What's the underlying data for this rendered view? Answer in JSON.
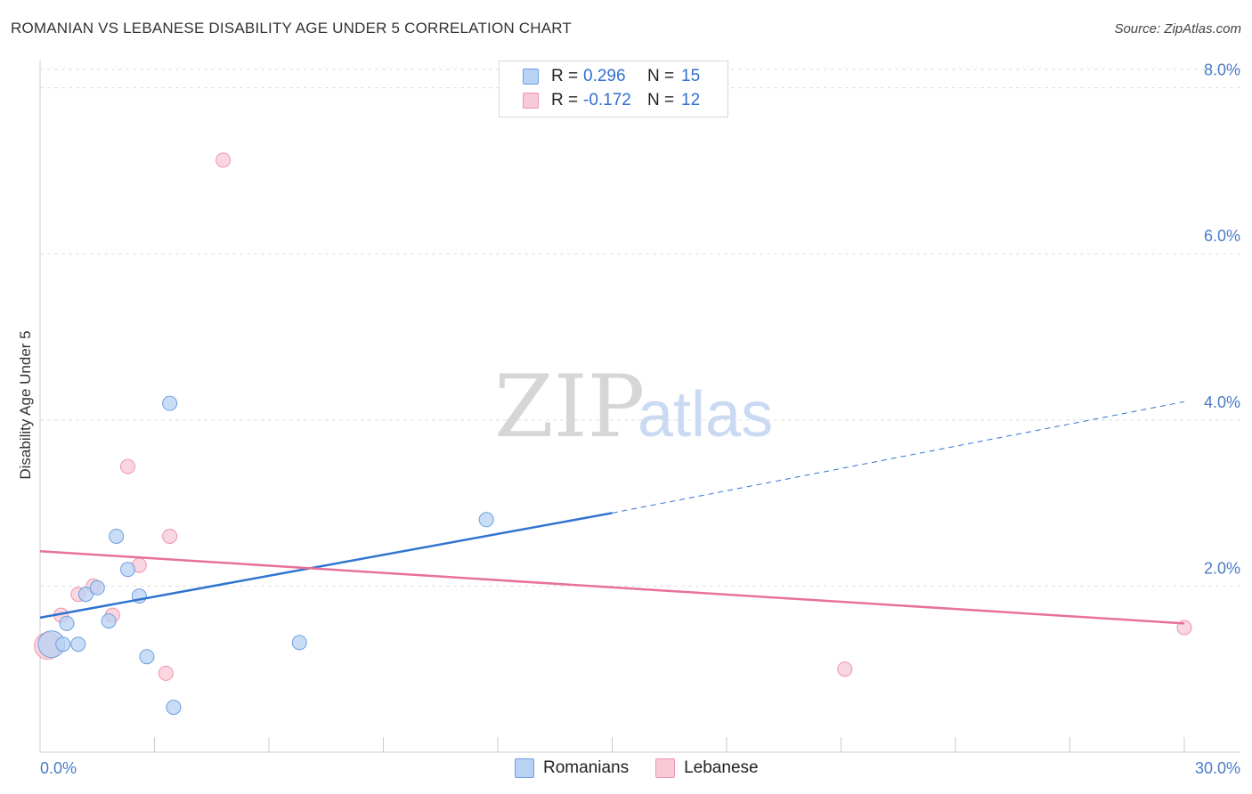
{
  "title": "ROMANIAN VS LEBANESE DISABILITY AGE UNDER 5 CORRELATION CHART",
  "source": "Source: ZipAtlas.com",
  "watermark": {
    "zip": "ZIP",
    "atlas": "atlas"
  },
  "colors": {
    "romanians_fill": "#b8d2f4",
    "romanians_stroke": "#6c9fe0",
    "romanians_line": "#2f74d0",
    "lebanese_fill": "#f8c9d6",
    "lebanese_stroke": "#ec95ae",
    "lebanese_line": "#e8709a",
    "tick_text": "#4a7cc9"
  },
  "legend": {
    "rows": [
      {
        "r_label": "R =",
        "r_value": "0.296",
        "n_label": "N =",
        "n_value": "15"
      },
      {
        "r_label": "R =",
        "r_value": "-0.172",
        "n_label": "N =",
        "n_value": "12"
      }
    ],
    "series": [
      "Romanians",
      "Lebanese"
    ]
  },
  "chart_data": {
    "type": "scatter",
    "title": "ROMANIAN VS LEBANESE DISABILITY AGE UNDER 5 CORRELATION CHART",
    "xlabel": "",
    "ylabel": "Disability Age Under 5",
    "xlim": [
      0,
      30
    ],
    "ylim": [
      0,
      8.2
    ],
    "x_tick_labels": [
      "0.0%",
      "30.0%"
    ],
    "y_ticks": [
      2,
      4,
      6,
      8
    ],
    "y_tick_labels": [
      "2.0%",
      "4.0%",
      "6.0%",
      "8.0%"
    ],
    "grid": true,
    "series": [
      {
        "name": "Romanians",
        "points": [
          {
            "x": 0.3,
            "y": 1.3,
            "big": true
          },
          {
            "x": 0.6,
            "y": 1.3
          },
          {
            "x": 0.7,
            "y": 1.55
          },
          {
            "x": 1.0,
            "y": 1.3
          },
          {
            "x": 1.2,
            "y": 1.9
          },
          {
            "x": 1.5,
            "y": 1.98
          },
          {
            "x": 1.8,
            "y": 1.58
          },
          {
            "x": 2.0,
            "y": 2.6
          },
          {
            "x": 2.3,
            "y": 2.2
          },
          {
            "x": 2.6,
            "y": 1.88
          },
          {
            "x": 2.8,
            "y": 1.15
          },
          {
            "x": 3.4,
            "y": 4.2
          },
          {
            "x": 3.5,
            "y": 0.54
          },
          {
            "x": 6.8,
            "y": 1.32
          },
          {
            "x": 11.7,
            "y": 2.8
          }
        ],
        "trend": {
          "x0": 0,
          "y0": 1.62,
          "x1": 15,
          "y1": 2.88,
          "x_dash_end": 30,
          "y_dash_end": 4.22
        }
      },
      {
        "name": "Lebanese",
        "points": [
          {
            "x": 0.2,
            "y": 1.28,
            "big": true
          },
          {
            "x": 0.55,
            "y": 1.65
          },
          {
            "x": 1.0,
            "y": 1.9
          },
          {
            "x": 1.4,
            "y": 2.0
          },
          {
            "x": 1.9,
            "y": 1.65
          },
          {
            "x": 2.3,
            "y": 3.44
          },
          {
            "x": 2.6,
            "y": 2.25
          },
          {
            "x": 3.3,
            "y": 0.95
          },
          {
            "x": 3.4,
            "y": 2.6
          },
          {
            "x": 4.8,
            "y": 7.13
          },
          {
            "x": 21.1,
            "y": 1.0
          },
          {
            "x": 30.0,
            "y": 1.5
          }
        ],
        "trend": {
          "x0": 0,
          "y0": 2.42,
          "x1": 30,
          "y1": 1.55
        }
      }
    ]
  }
}
